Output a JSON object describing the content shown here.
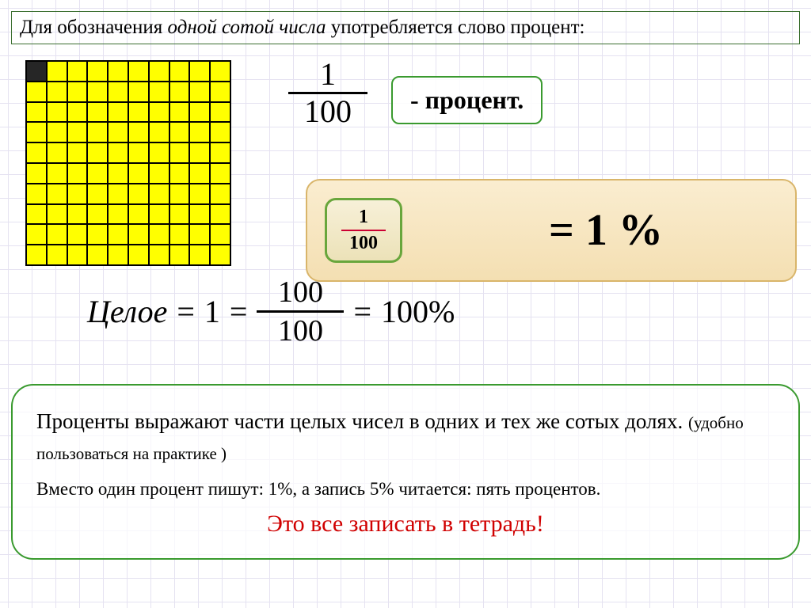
{
  "title": {
    "pre": "Для обозначения ",
    "italic": "одной сотой числа",
    "post": " употребляется слово процент:"
  },
  "grid": {
    "rows": 10,
    "cols": 10,
    "cell_color": "#ffff00",
    "shaded_color": "#262626",
    "border_color": "#000000",
    "shaded_cell_index": 0
  },
  "big_fraction": {
    "num": "1",
    "den": "100"
  },
  "procent_label": "- процент.",
  "equation": {
    "frac": {
      "num": "1",
      "den": "100"
    },
    "result": "=   1 %",
    "outer_bg_top": "#faedd0",
    "outer_bg_bottom": "#f4dfb2",
    "outer_border": "#d9b56a",
    "inner_border": "#69a63c",
    "inner_bar_color": "#cc0033"
  },
  "whole": {
    "label": "Целое",
    "eq1": "=",
    "one": "1",
    "eq2": "=",
    "frac": {
      "num": "100",
      "den": "100"
    },
    "eq3": "=",
    "rhs": "100%"
  },
  "bottom": {
    "p1a": "Проценты выражают части целых чисел в одних и тех же сотых долях.",
    "p1b": "(удобно пользоваться на практике )",
    "p2": "Вместо один процент пишут: 1%, а запись 5% читается: пять процентов.",
    "p3": "Это все записать в тетрадь!",
    "border_color": "#3a9a2f",
    "p3_color": "#d00000"
  }
}
